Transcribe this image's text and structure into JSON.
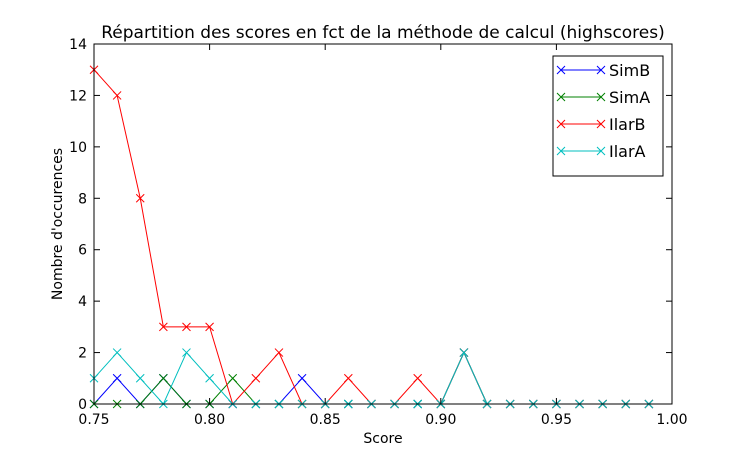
{
  "chart_data": {
    "type": "line",
    "title": "Répartition des scores en fct de la méthode de calcul (highscores)",
    "xlabel": "Score",
    "ylabel": "Nombre d'occurences",
    "xlim": [
      0.75,
      1.0
    ],
    "ylim": [
      0,
      14
    ],
    "xticks": [
      0.75,
      0.8,
      0.85,
      0.9,
      0.95,
      1.0
    ],
    "xtick_labels": [
      "0.75",
      "0.80",
      "0.85",
      "0.90",
      "0.95",
      "1.00"
    ],
    "yticks": [
      0,
      2,
      4,
      6,
      8,
      10,
      12,
      14
    ],
    "ytick_labels": [
      "0",
      "2",
      "4",
      "6",
      "8",
      "10",
      "12",
      "14"
    ],
    "grid": false,
    "legend_position": "top-right",
    "marker": "x",
    "x": [
      0.75,
      0.76,
      0.77,
      0.78,
      0.79,
      0.8,
      0.81,
      0.82,
      0.83,
      0.84,
      0.85,
      0.86,
      0.87,
      0.88,
      0.89,
      0.9,
      0.91,
      0.92,
      0.93,
      0.94,
      0.95,
      0.96,
      0.97,
      0.98,
      0.99
    ],
    "series": [
      {
        "name": "SimB",
        "color": "#0000ff",
        "values": [
          0,
          1,
          0,
          1,
          0,
          0,
          0,
          0,
          0,
          1,
          0,
          0,
          0,
          0,
          0,
          0,
          2,
          0,
          0,
          0,
          0,
          0,
          0,
          0,
          0
        ]
      },
      {
        "name": "SimA",
        "color": "#008000",
        "values": [
          0,
          0,
          0,
          1,
          0,
          0,
          1,
          0,
          0,
          0,
          0,
          0,
          0,
          0,
          0,
          0,
          2,
          0,
          0,
          0,
          0,
          0,
          0,
          0,
          0
        ]
      },
      {
        "name": "IlarB",
        "color": "#ff0000",
        "values": [
          13,
          12,
          8,
          3,
          3,
          3,
          0,
          1,
          2,
          0,
          0,
          1,
          0,
          0,
          1,
          0,
          2,
          0,
          0,
          0,
          0,
          0,
          0,
          0,
          0
        ]
      },
      {
        "name": "IlarA",
        "color": "#00bfbf",
        "values": [
          1,
          2,
          1,
          0,
          2,
          1,
          0,
          0,
          0,
          0,
          0,
          0,
          0,
          0,
          0,
          0,
          2,
          0,
          0,
          0,
          0,
          0,
          0,
          0,
          0
        ]
      }
    ]
  }
}
